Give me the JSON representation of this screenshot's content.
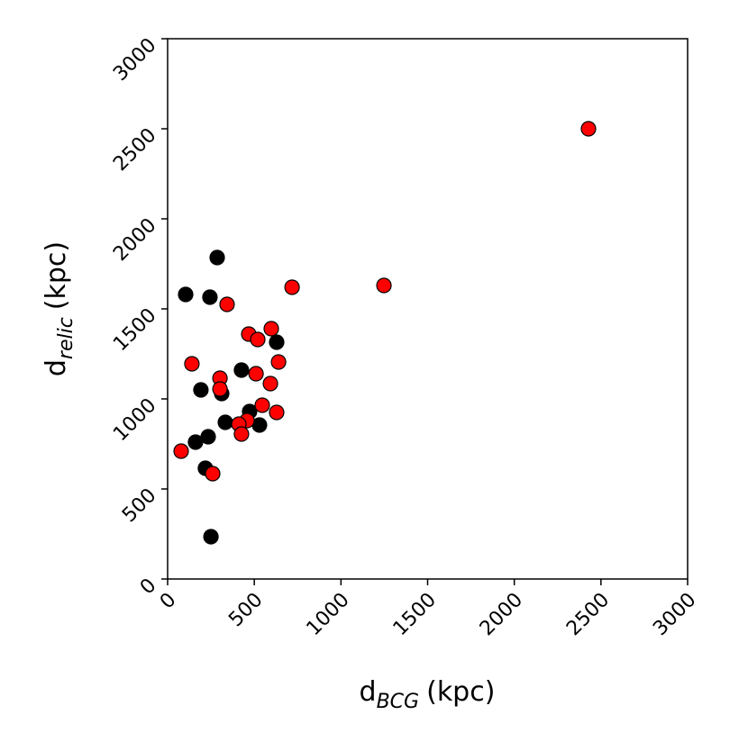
{
  "chart_data": {
    "type": "scatter",
    "xlabel": {
      "main": "d",
      "sub": "BCG",
      "rest": "(kpc)"
    },
    "ylabel": {
      "main": "d",
      "sub": "relic",
      "rest": "(kpc)"
    },
    "xlim": [
      0,
      3000
    ],
    "xticks": [
      0,
      500,
      1000,
      1500,
      2000,
      2500,
      3000
    ],
    "ylim": [
      0,
      3000
    ],
    "yticks": [
      0,
      500,
      1000,
      1500,
      2000,
      2500,
      3000
    ],
    "series": [
      {
        "color": "#000000",
        "x": [
          104,
          244,
          286,
          629,
          426,
          192,
          312,
          333,
          473,
          530,
          161,
          234,
          218,
          250
        ],
        "values": [
          1580,
          1565,
          1785,
          1315,
          1160,
          1050,
          1030,
          870,
          930,
          855,
          760,
          790,
          615,
          235
        ]
      },
      {
        "color": "#ff0000",
        "x": [
          78,
          140,
          343,
          302,
          302,
          260,
          468,
          520,
          598,
          510,
          640,
          593,
          546,
          629,
          458,
          411,
          426,
          718,
          1248,
          2428
        ],
        "values": [
          710,
          1195,
          1525,
          1115,
          1055,
          585,
          1360,
          1330,
          1390,
          1140,
          1205,
          1085,
          965,
          925,
          880,
          860,
          805,
          1620,
          1630,
          2500
        ]
      }
    ]
  }
}
